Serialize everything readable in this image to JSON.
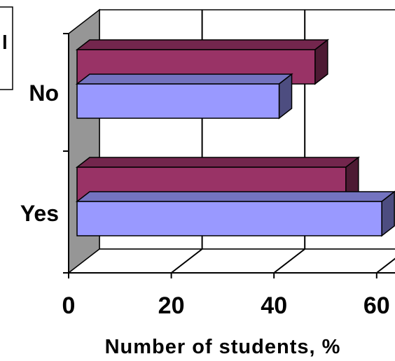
{
  "chart_data": {
    "type": "bar",
    "orientation": "horizontal",
    "three_d": true,
    "categories": [
      "No",
      "Yes"
    ],
    "series": [
      {
        "color": "#993366",
        "values": [
          48,
          54
        ]
      },
      {
        "color": "#9999ff",
        "values": [
          41,
          61
        ]
      }
    ],
    "xlabel": "Number of students, %",
    "ylabel": "",
    "xlim": [
      0,
      60
    ],
    "xticks": [
      0,
      20,
      40,
      60
    ],
    "grid": true,
    "legend": "cropped-top-left"
  }
}
